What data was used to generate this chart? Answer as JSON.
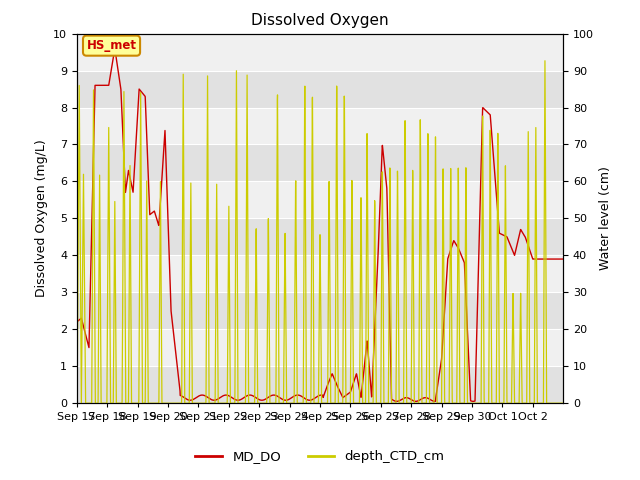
{
  "title": "Dissolved Oxygen",
  "ylabel_left": "Dissolved Oxygen (mg/L)",
  "ylabel_right": "Water level (cm)",
  "ylim_left": [
    0.0,
    10.0
  ],
  "ylim_right": [
    0,
    100
  ],
  "yticks_left": [
    0.0,
    1.0,
    2.0,
    3.0,
    4.0,
    5.0,
    6.0,
    7.0,
    8.0,
    9.0,
    10.0
  ],
  "yticks_right": [
    0,
    10,
    20,
    30,
    40,
    50,
    60,
    70,
    80,
    90,
    100
  ],
  "xtick_labels": [
    "Sep 17",
    "Sep 18",
    "Sep 19",
    "Sep 20",
    "Sep 21",
    "Sep 22",
    "Sep 23",
    "Sep 24",
    "Sep 25",
    "Sep 26",
    "Sep 27",
    "Sep 28",
    "Sep 29",
    "Sep 30",
    "Oct 1",
    "Oct 2"
  ],
  "color_do": "#cc0000",
  "color_depth": "#cccc00",
  "annotation_text": "HS_met",
  "annotation_color": "#cc0000",
  "annotation_bg": "#ffff99",
  "annotation_border": "#cc8800",
  "legend_labels": [
    "MD_DO",
    "depth_CTD_cm"
  ],
  "bg_color": "#ffffff",
  "plot_bg_dark": "#e0e0e0",
  "plot_bg_light": "#f0f0f0",
  "fontsize_ticks": 8,
  "fontsize_labels": 9,
  "fontsize_title": 11
}
